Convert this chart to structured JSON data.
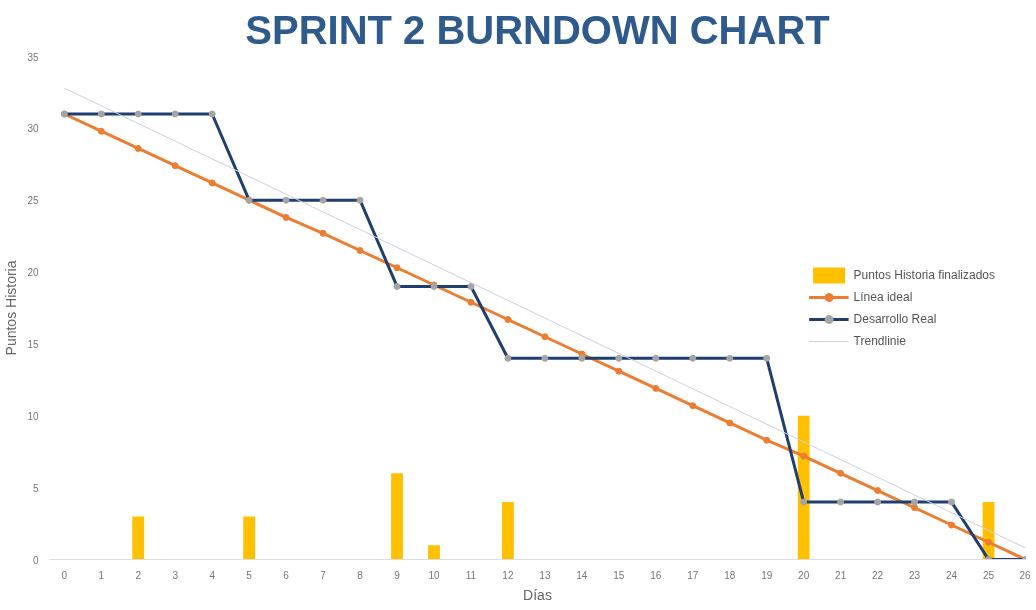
{
  "chart_data": {
    "type": "bar",
    "title": "SPRINT 2 BURNDOWN CHART",
    "xlabel": "Días",
    "ylabel": "Puntos Historia",
    "x": [
      0,
      1,
      2,
      3,
      4,
      5,
      6,
      7,
      8,
      9,
      10,
      11,
      12,
      13,
      14,
      15,
      16,
      17,
      18,
      19,
      20,
      21,
      22,
      23,
      24,
      25,
      26
    ],
    "xlim": [
      -0.4,
      26
    ],
    "xticks": [
      0,
      1,
      2,
      3,
      4,
      5,
      6,
      7,
      8,
      9,
      10,
      11,
      12,
      13,
      14,
      15,
      16,
      17,
      18,
      19,
      20,
      21,
      22,
      23,
      24,
      25,
      26
    ],
    "ylim": [
      0,
      35
    ],
    "yticks": [
      0,
      5,
      10,
      15,
      20,
      25,
      30,
      35
    ],
    "grid": false,
    "legend": "right",
    "marker": "circle",
    "series": [
      {
        "name": "Puntos Historia finalizados",
        "color": "#ffc000",
        "values": [
          null,
          null,
          3,
          null,
          null,
          3,
          null,
          null,
          null,
          6,
          1,
          null,
          4,
          null,
          null,
          null,
          null,
          null,
          null,
          null,
          10,
          null,
          null,
          null,
          null,
          4,
          null
        ]
      },
      {
        "name": "Línea ideal",
        "type": "line",
        "color": "#ed7d31",
        "values": [
          31,
          29.8,
          28.6,
          27.4,
          26.2,
          25,
          23.8,
          22.7,
          21.5,
          20.3,
          19.1,
          17.9,
          16.7,
          15.5,
          14.3,
          13.1,
          11.9,
          10.7,
          9.5,
          8.3,
          7.2,
          6,
          4.8,
          3.6,
          2.4,
          1.2,
          0
        ]
      },
      {
        "name": "Desarrollo Real",
        "type": "line",
        "color": "#1f3f6e",
        "values": [
          31,
          31,
          31,
          31,
          31,
          25,
          25,
          25,
          25,
          19,
          19,
          19,
          14,
          14,
          14,
          14,
          14,
          14,
          14,
          14,
          4,
          4,
          4,
          4,
          4,
          0,
          0
        ]
      },
      {
        "name": "Trendlinie",
        "type": "line",
        "color": "#c9d3e3",
        "marker": "none",
        "x": [
          0,
          26
        ],
        "values": [
          32.8,
          0.8
        ]
      }
    ]
  }
}
